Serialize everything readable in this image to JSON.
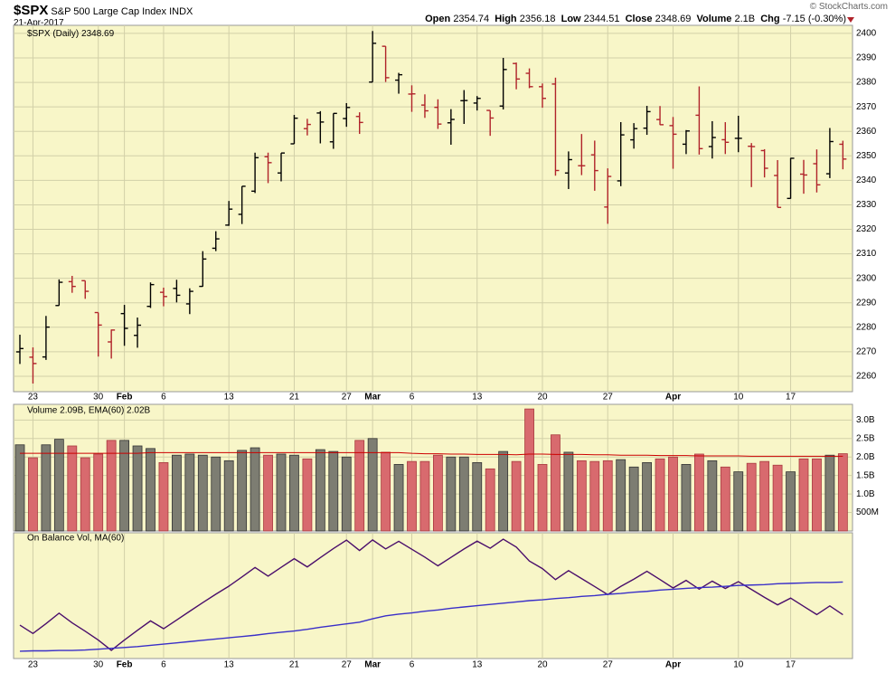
{
  "header": {
    "symbol": "$SPX",
    "name": "S&P 500 Large Cap Index",
    "exchange": "INDX",
    "date": "21-Apr-2017",
    "credit": "© StockCharts.com",
    "open_label": "Open",
    "high_label": "High",
    "low_label": "Low",
    "close_label": "Close",
    "volume_label": "Volume",
    "volume_value": "2.1B",
    "change_label": "Chg",
    "change_value": "-7.15 (-0.30%)"
  },
  "chart_data": [
    {
      "type": "ohlc",
      "title": "$SPX (Daily)",
      "categories": [
        null,
        "23",
        null,
        null,
        null,
        null,
        "30",
        null,
        "Feb",
        null,
        null,
        "6",
        null,
        null,
        null,
        null,
        "13",
        null,
        null,
        null,
        null,
        "21",
        null,
        null,
        null,
        "27",
        null,
        "Mar",
        null,
        null,
        "6",
        null,
        null,
        null,
        null,
        "13",
        null,
        null,
        null,
        null,
        "20",
        null,
        null,
        null,
        null,
        "27",
        null,
        null,
        null,
        null,
        "Apr",
        null,
        null,
        null,
        null,
        "10",
        null,
        null,
        null,
        "17",
        null,
        null,
        null,
        null
      ],
      "open": [
        2269.96,
        2267.78,
        2267.88,
        2288.88,
        2298.63,
        2299.02,
        2286.01,
        2274.02,
        2285.59,
        2276.69,
        2288.54,
        2294.28,
        2295.87,
        2289.55,
        2296.7,
        2312.27,
        2321.72,
        2326.12,
        2335.58,
        2349.64,
        2343.01,
        2354.91,
        2361.11,
        2367.5,
        2355.73,
        2365.23,
        2366.08,
        2380.13,
        2394.75,
        2380.92,
        2375.23,
        2370.74,
        2369.81,
        2363.49,
        2372.52,
        2371.56,
        2368.55,
        2370.34,
        2387.71,
        2383.71,
        2378.24,
        2379.32,
        2343.0,
        2345.97,
        2350.42,
        2329.11,
        2339.79,
        2356.54,
        2361.31,
        2364.82,
        2362.34,
        2354.76,
        2366.59,
        2353.79,
        2356.59,
        2357.16,
        2353.92,
        2352.15,
        2341.98,
        2332.62,
        2342.53,
        2346.79,
        2342.69,
        2354.74
      ],
      "high": [
        2276.96,
        2271.78,
        2284.63,
        2299.55,
        2300.99,
        2299.02,
        2286.01,
        2279.09,
        2289.14,
        2283.97,
        2298.31,
        2296.18,
        2299.4,
        2295.91,
        2311.08,
        2319.23,
        2331.58,
        2337.58,
        2351.3,
        2351.31,
        2351.16,
        2366.71,
        2365.13,
        2368.26,
        2367.34,
        2371.54,
        2367.79,
        2400.98,
        2394.75,
        2383.89,
        2378.8,
        2375.12,
        2373.09,
        2369.08,
        2376.86,
        2374.42,
        2368.55,
        2390.01,
        2388.1,
        2385.71,
        2379.55,
        2381.93,
        2351.81,
        2358.92,
        2356.22,
        2344.9,
        2363.78,
        2363.36,
        2370.42,
        2370.35,
        2365.87,
        2360.53,
        2378.36,
        2364.16,
        2363.76,
        2366.37,
        2355.22,
        2352.72,
        2348.26,
        2349.14,
        2348.35,
        2352.63,
        2361.37,
        2356.18
      ],
      "low": [
        2265.01,
        2257.02,
        2266.68,
        2288.88,
        2294.08,
        2291.62,
        2268.04,
        2267.21,
        2272.44,
        2271.65,
        2287.88,
        2288.57,
        2290.16,
        2285.38,
        2296.61,
        2311.1,
        2321.42,
        2322.17,
        2334.81,
        2338.87,
        2339.58,
        2354.91,
        2358.34,
        2355.09,
        2352.87,
        2361.87,
        2358.96,
        2380.13,
        2380.17,
        2375.39,
        2367.98,
        2365.51,
        2361.01,
        2354.54,
        2363.04,
        2368.52,
        2358.18,
        2368.94,
        2377.18,
        2377.64,
        2369.66,
        2341.9,
        2336.45,
        2342.13,
        2335.74,
        2322.25,
        2337.63,
        2352.94,
        2358.58,
        2362.6,
        2344.73,
        2350.72,
        2350.52,
        2348.9,
        2350.74,
        2351.5,
        2337.25,
        2341.18,
        2328.95,
        2332.51,
        2334.54,
        2335.05,
        2340.91,
        2344.51
      ],
      "close": [
        2271.31,
        2265.2,
        2280.07,
        2298.37,
        2296.68,
        2294.69,
        2280.9,
        2278.87,
        2279.55,
        2280.85,
        2297.42,
        2292.56,
        2293.08,
        2294.67,
        2307.87,
        2316.1,
        2328.25,
        2337.58,
        2349.25,
        2347.22,
        2351.16,
        2365.38,
        2362.82,
        2363.81,
        2367.34,
        2369.75,
        2363.64,
        2395.96,
        2381.92,
        2383.12,
        2375.31,
        2368.39,
        2362.98,
        2364.87,
        2372.6,
        2373.47,
        2365.45,
        2385.26,
        2381.38,
        2378.25,
        2373.47,
        2344.02,
        2348.45,
        2345.96,
        2343.98,
        2341.59,
        2358.57,
        2361.13,
        2368.06,
        2362.72,
        2358.84,
        2360.16,
        2352.95,
        2357.49,
        2355.54,
        2357.16,
        2353.78,
        2344.93,
        2328.95,
        2349.01,
        2342.19,
        2338.17,
        2355.84,
        2348.69
      ],
      "up_color": "#000000",
      "down_color": "#b0232a",
      "ylim": [
        2253.7,
        2403.3
      ],
      "yticks": [
        2260,
        2270,
        2280,
        2290,
        2300,
        2310,
        2320,
        2330,
        2340,
        2350,
        2360,
        2370,
        2380,
        2390,
        2400
      ],
      "grid": true
    },
    {
      "type": "volume",
      "title": "Volume 2.09B, EMA(60) 2.02B",
      "values": [
        2.33,
        1.98,
        2.33,
        2.48,
        2.3,
        1.98,
        2.08,
        2.45,
        2.45,
        2.3,
        2.23,
        1.85,
        2.05,
        2.08,
        2.05,
        2.0,
        1.9,
        2.18,
        2.25,
        2.05,
        2.08,
        2.05,
        1.95,
        2.2,
        2.15,
        2.0,
        2.45,
        2.5,
        2.13,
        1.8,
        1.88,
        1.88,
        2.05,
        2.0,
        2.0,
        1.85,
        1.68,
        2.15,
        1.88,
        3.3,
        1.8,
        2.6,
        2.13,
        1.9,
        1.88,
        1.9,
        1.93,
        1.73,
        1.85,
        1.95,
        2.0,
        1.8,
        2.08,
        1.9,
        1.73,
        1.6,
        1.83,
        1.88,
        1.78,
        1.6,
        1.95,
        1.95,
        2.05,
        2.09
      ],
      "ema": [
        2.1,
        2.1,
        2.1,
        2.1,
        2.1,
        2.1,
        2.1,
        2.1,
        2.1,
        2.1,
        2.12,
        2.12,
        2.12,
        2.12,
        2.12,
        2.12,
        2.12,
        2.12,
        2.12,
        2.12,
        2.12,
        2.12,
        2.12,
        2.12,
        2.12,
        2.12,
        2.12,
        2.12,
        2.12,
        2.12,
        2.1,
        2.09,
        2.09,
        2.08,
        2.08,
        2.07,
        2.07,
        2.07,
        2.06,
        2.08,
        2.08,
        2.07,
        2.07,
        2.07,
        2.06,
        2.06,
        2.05,
        2.05,
        2.05,
        2.04,
        2.04,
        2.04,
        2.03,
        2.03,
        2.03,
        2.03,
        2.02,
        2.02,
        2.02,
        2.02,
        2.02,
        2.02,
        2.02,
        2.02
      ],
      "up_color": "#7d7d72",
      "down_color": "#d86a6e",
      "ema_color": "#cc0000",
      "ylim": [
        0,
        3.425
      ],
      "yticks": [
        {
          "value": 0.5,
          "label": "500M"
        },
        {
          "value": 1,
          "label": "1.0B"
        },
        {
          "value": 1.5,
          "label": "1.5B"
        },
        {
          "value": 2,
          "label": "2.0B"
        },
        {
          "value": 2.5,
          "label": "2.5B"
        },
        {
          "value": 3,
          "label": "3.0B"
        }
      ],
      "grid": true
    },
    {
      "type": "line",
      "title": "On Balance Vol, MA(60)",
      "series": [
        {
          "color": "#4a0e6b",
          "values": [
            0,
            -1.98,
            0.35,
            2.83,
            0.53,
            -1.45,
            -3.53,
            -5.98,
            -3.53,
            -1.23,
            1.0,
            -0.85,
            1.2,
            3.28,
            5.33,
            7.33,
            9.23,
            11.41,
            13.66,
            11.61,
            13.69,
            15.74,
            13.79,
            15.99,
            18.14,
            20.14,
            17.69,
            20.19,
            18.06,
            19.86,
            17.98,
            16.1,
            14.05,
            16.05,
            18.05,
            19.9,
            18.22,
            20.37,
            18.49,
            15.19,
            13.39,
            10.79,
            12.92,
            11.02,
            9.14,
            7.24,
            9.17,
            10.9,
            12.75,
            10.8,
            8.8,
            10.6,
            8.52,
            10.42,
            8.69,
            10.29,
            8.46,
            6.58,
            4.8,
            6.4,
            4.45,
            2.5,
            4.55,
            2.46
          ]
        },
        {
          "color": "#3a2fc8",
          "values": [
            -6.2,
            -6.1,
            -6.1,
            -6.0,
            -6.0,
            -5.9,
            -5.7,
            -5.5,
            -5.3,
            -5.1,
            -4.8,
            -4.5,
            -4.2,
            -3.9,
            -3.6,
            -3.3,
            -3.0,
            -2.7,
            -2.4,
            -2.0,
            -1.7,
            -1.4,
            -1.0,
            -0.5,
            -0.1,
            0.3,
            0.7,
            1.5,
            2.2,
            2.6,
            2.9,
            3.3,
            3.6,
            4.0,
            4.3,
            4.6,
            4.9,
            5.2,
            5.5,
            5.8,
            6.0,
            6.3,
            6.5,
            6.8,
            7.0,
            7.3,
            7.5,
            7.8,
            8.0,
            8.3,
            8.5,
            8.7,
            8.9,
            9.0,
            9.2,
            9.4,
            9.5,
            9.6,
            9.8,
            9.9,
            10.0,
            10.1,
            10.1,
            10.2
          ]
        }
      ],
      "ylim": [
        -7.92,
        21.88
      ],
      "grid": false
    }
  ]
}
